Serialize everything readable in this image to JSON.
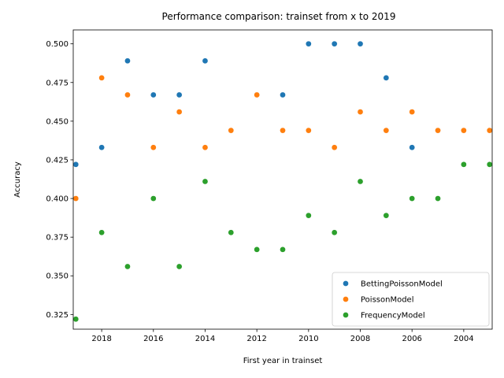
{
  "chart_data": {
    "type": "scatter",
    "title": "Performance comparison: trainset from x to 2019",
    "xlabel": "First year in trainset",
    "ylabel": "Accuracy",
    "x_reversed": true,
    "xlim": [
      2019.1,
      2002.9
    ],
    "ylim": [
      0.3155,
      0.509
    ],
    "x_ticks": [
      2018,
      2016,
      2014,
      2012,
      2010,
      2008,
      2006,
      2004
    ],
    "y_ticks": [
      0.325,
      0.35,
      0.375,
      0.4,
      0.425,
      0.45,
      0.475,
      0.5
    ],
    "y_tick_labels": [
      "0.325",
      "0.350",
      "0.375",
      "0.400",
      "0.425",
      "0.450",
      "0.475",
      "0.500"
    ],
    "x": [
      2019,
      2018,
      2017,
      2016,
      2015,
      2014,
      2013,
      2012,
      2011,
      2010,
      2009,
      2008,
      2007,
      2006,
      2005,
      2004,
      2003
    ],
    "legend_position": "lower right",
    "grid": false,
    "series": [
      {
        "name": "BettingPoissonModel",
        "color": "#1f77b4",
        "values": [
          0.422,
          0.433,
          0.489,
          0.467,
          0.467,
          0.489,
          0.444,
          0.467,
          0.467,
          0.5,
          0.5,
          0.5,
          0.478,
          0.433,
          0.444,
          0.444,
          0.444
        ]
      },
      {
        "name": "PoissonModel",
        "color": "#ff7f0e",
        "values": [
          0.4,
          0.478,
          0.467,
          0.433,
          0.456,
          0.433,
          0.444,
          0.467,
          0.444,
          0.444,
          0.433,
          0.456,
          0.444,
          0.456,
          0.444,
          0.444,
          0.444
        ]
      },
      {
        "name": "FrequencyModel",
        "color": "#2ca02c",
        "values": [
          0.322,
          0.378,
          0.356,
          0.4,
          0.356,
          0.411,
          0.378,
          0.367,
          0.367,
          0.389,
          0.378,
          0.411,
          0.389,
          0.4,
          0.4,
          0.422,
          0.422
        ]
      }
    ]
  }
}
